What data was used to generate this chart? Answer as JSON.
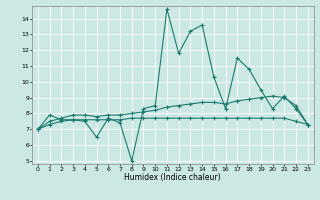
{
  "title": "",
  "xlabel": "Humidex (Indice chaleur)",
  "background_color": "#cce8e5",
  "line_color": "#1a7a6e",
  "grid_color": "#ffffff",
  "xlim": [
    -0.5,
    23.5
  ],
  "ylim": [
    4.8,
    14.8
  ],
  "yticks": [
    5,
    6,
    7,
    8,
    9,
    10,
    11,
    12,
    13,
    14
  ],
  "xticks": [
    0,
    1,
    2,
    3,
    4,
    5,
    6,
    7,
    8,
    9,
    10,
    11,
    12,
    13,
    14,
    15,
    16,
    17,
    18,
    19,
    20,
    21,
    22,
    23
  ],
  "series1": {
    "x": [
      0,
      1,
      2,
      3,
      4,
      5,
      6,
      7,
      8,
      9,
      10,
      11,
      12,
      13,
      14,
      15,
      16,
      17,
      18,
      19,
      20,
      21,
      22,
      23
    ],
    "y": [
      7.0,
      7.9,
      7.6,
      7.6,
      7.5,
      6.5,
      7.7,
      7.4,
      5.0,
      8.3,
      8.5,
      14.6,
      11.8,
      13.2,
      13.6,
      10.3,
      8.3,
      11.5,
      10.8,
      9.5,
      8.3,
      9.1,
      8.3,
      7.3
    ]
  },
  "series2": {
    "x": [
      0,
      1,
      2,
      3,
      4,
      5,
      6,
      7,
      8,
      9,
      10,
      11,
      12,
      13,
      14,
      15,
      16,
      17,
      18,
      19,
      20,
      21,
      22,
      23
    ],
    "y": [
      7.0,
      7.5,
      7.7,
      7.9,
      7.9,
      7.8,
      7.9,
      7.9,
      8.0,
      8.1,
      8.2,
      8.4,
      8.5,
      8.6,
      8.7,
      8.7,
      8.6,
      8.8,
      8.9,
      9.0,
      9.1,
      9.0,
      8.5,
      7.3
    ]
  },
  "series3": {
    "x": [
      0,
      1,
      2,
      3,
      4,
      5,
      6,
      7,
      8,
      9,
      10,
      11,
      12,
      13,
      14,
      15,
      16,
      17,
      18,
      19,
      20,
      21,
      22,
      23
    ],
    "y": [
      7.0,
      7.3,
      7.5,
      7.6,
      7.6,
      7.6,
      7.6,
      7.6,
      7.7,
      7.7,
      7.7,
      7.7,
      7.7,
      7.7,
      7.7,
      7.7,
      7.7,
      7.7,
      7.7,
      7.7,
      7.7,
      7.7,
      7.5,
      7.3
    ]
  }
}
